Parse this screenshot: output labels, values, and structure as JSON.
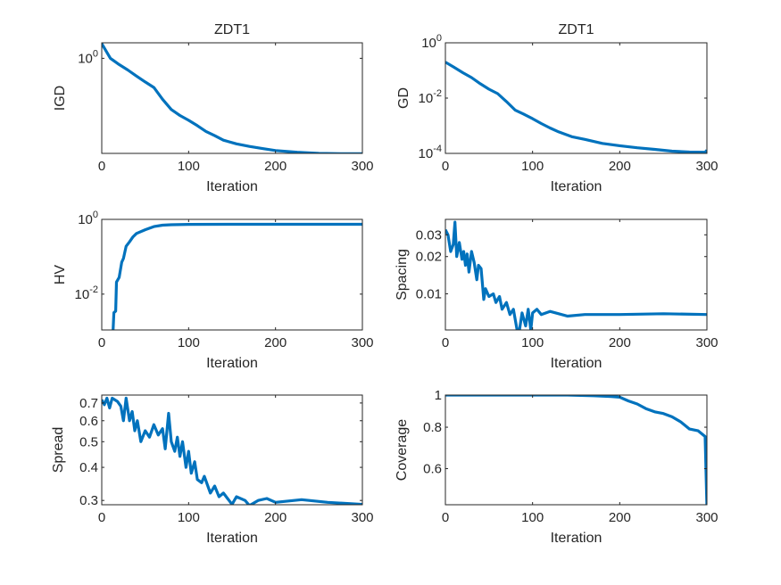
{
  "line_color": "#0072BD",
  "chart_data": [
    {
      "type": "line",
      "title": "ZDT1",
      "xlabel": "Iteration",
      "ylabel": "IGD",
      "yscale": "log",
      "xlim": [
        0,
        300
      ],
      "ylim": [
        0.2,
        1.3
      ],
      "xticks": [
        {
          "value": 0,
          "label": "0"
        },
        {
          "value": 100,
          "label": "100"
        },
        {
          "value": 200,
          "label": "200"
        },
        {
          "value": 300,
          "label": "300"
        }
      ],
      "yticks": [
        {
          "value": 1,
          "label": "10",
          "exp": "0"
        }
      ],
      "points": [
        [
          0,
          1.28
        ],
        [
          10,
          1.0
        ],
        [
          20,
          0.9
        ],
        [
          30,
          0.82
        ],
        [
          40,
          0.74
        ],
        [
          50,
          0.67
        ],
        [
          60,
          0.61
        ],
        [
          70,
          0.5
        ],
        [
          80,
          0.42
        ],
        [
          90,
          0.38
        ],
        [
          100,
          0.35
        ],
        [
          110,
          0.32
        ],
        [
          120,
          0.29
        ],
        [
          130,
          0.27
        ],
        [
          140,
          0.25
        ],
        [
          155,
          0.235
        ],
        [
          170,
          0.225
        ],
        [
          185,
          0.217
        ],
        [
          200,
          0.21
        ],
        [
          225,
          0.204
        ],
        [
          250,
          0.2
        ],
        [
          275,
          0.199
        ],
        [
          300,
          0.199
        ]
      ]
    },
    {
      "type": "line",
      "title": "ZDT1",
      "xlabel": "Iteration",
      "ylabel": "GD",
      "yscale": "log",
      "xlim": [
        0,
        300
      ],
      "ylim": [
        0.0001,
        1
      ],
      "xticks": [
        {
          "value": 0,
          "label": "0"
        },
        {
          "value": 100,
          "label": "100"
        },
        {
          "value": 200,
          "label": "200"
        },
        {
          "value": 300,
          "label": "300"
        }
      ],
      "yticks": [
        {
          "value": 1,
          "label": "10",
          "exp": "0"
        },
        {
          "value": 0.01,
          "label": "10",
          "exp": "-2"
        },
        {
          "value": 0.0001,
          "label": "10",
          "exp": "-4"
        }
      ],
      "points": [
        [
          0,
          0.2
        ],
        [
          10,
          0.13
        ],
        [
          20,
          0.083
        ],
        [
          30,
          0.055
        ],
        [
          40,
          0.033
        ],
        [
          50,
          0.021
        ],
        [
          60,
          0.0145
        ],
        [
          70,
          0.0075
        ],
        [
          80,
          0.0037
        ],
        [
          90,
          0.0026
        ],
        [
          100,
          0.0018
        ],
        [
          110,
          0.0012
        ],
        [
          120,
          0.00083
        ],
        [
          130,
          0.0006
        ],
        [
          145,
          0.0004
        ],
        [
          160,
          0.00032
        ],
        [
          180,
          0.00023
        ],
        [
          200,
          0.00019
        ],
        [
          220,
          0.00016
        ],
        [
          240,
          0.00014
        ],
        [
          260,
          0.00012
        ],
        [
          280,
          0.000112
        ],
        [
          298,
          0.00011
        ],
        [
          300,
          0.00013
        ]
      ]
    },
    {
      "type": "line",
      "title": "",
      "xlabel": "Iteration",
      "ylabel": "HV",
      "yscale": "log",
      "xlim": [
        0,
        300
      ],
      "ylim": [
        0.0011,
        1
      ],
      "xticks": [
        {
          "value": 0,
          "label": "0"
        },
        {
          "value": 100,
          "label": "100"
        },
        {
          "value": 200,
          "label": "200"
        },
        {
          "value": 300,
          "label": "300"
        }
      ],
      "yticks": [
        {
          "value": 1,
          "label": "10",
          "exp": "0"
        },
        {
          "value": 0.01,
          "label": "10",
          "exp": "-2"
        }
      ],
      "points": [
        [
          13,
          0.0011
        ],
        [
          14,
          0.0032
        ],
        [
          16,
          0.0035
        ],
        [
          17,
          0.021
        ],
        [
          20,
          0.028
        ],
        [
          23,
          0.072
        ],
        [
          25,
          0.09
        ],
        [
          28,
          0.19
        ],
        [
          32,
          0.25
        ],
        [
          36,
          0.34
        ],
        [
          40,
          0.42
        ],
        [
          50,
          0.53
        ],
        [
          60,
          0.64
        ],
        [
          70,
          0.7
        ],
        [
          80,
          0.72
        ],
        [
          100,
          0.735
        ],
        [
          150,
          0.74
        ],
        [
          200,
          0.74
        ],
        [
          300,
          0.74
        ]
      ]
    },
    {
      "type": "line",
      "title": "",
      "xlabel": "Iteration",
      "ylabel": "Spacing",
      "yscale": "log",
      "xlim": [
        0,
        300
      ],
      "ylim": [
        0.0051,
        0.04
      ],
      "xticks": [
        {
          "value": 0,
          "label": "0"
        },
        {
          "value": 100,
          "label": "100"
        },
        {
          "value": 200,
          "label": "200"
        },
        {
          "value": 300,
          "label": "300"
        }
      ],
      "yticks": [
        {
          "value": 0.03,
          "label": "0.03"
        },
        {
          "value": 0.02,
          "label": "0.02"
        },
        {
          "value": 0.01,
          "label": "0.01"
        }
      ],
      "points": [
        [
          0,
          0.033
        ],
        [
          3,
          0.03
        ],
        [
          6,
          0.022
        ],
        [
          9,
          0.025
        ],
        [
          11,
          0.038
        ],
        [
          13,
          0.02
        ],
        [
          16,
          0.026
        ],
        [
          19,
          0.019
        ],
        [
          21,
          0.022
        ],
        [
          23,
          0.017
        ],
        [
          25,
          0.021
        ],
        [
          27,
          0.015
        ],
        [
          30,
          0.022
        ],
        [
          33,
          0.018
        ],
        [
          36,
          0.013
        ],
        [
          38,
          0.017
        ],
        [
          41,
          0.016
        ],
        [
          44,
          0.009
        ],
        [
          46,
          0.011
        ],
        [
          50,
          0.0095
        ],
        [
          55,
          0.01
        ],
        [
          58,
          0.0085
        ],
        [
          62,
          0.0095
        ],
        [
          65,
          0.0075
        ],
        [
          70,
          0.0085
        ],
        [
          74,
          0.0068
        ],
        [
          78,
          0.0075
        ],
        [
          82,
          0.0052
        ],
        [
          85,
          0.0051
        ],
        [
          88,
          0.007
        ],
        [
          92,
          0.0055
        ],
        [
          95,
          0.0075
        ],
        [
          98,
          0.0051
        ],
        [
          100,
          0.007
        ],
        [
          105,
          0.0075
        ],
        [
          110,
          0.0068
        ],
        [
          120,
          0.0072
        ],
        [
          140,
          0.0066
        ],
        [
          160,
          0.0068
        ],
        [
          200,
          0.0068
        ],
        [
          250,
          0.0069
        ],
        [
          300,
          0.0068
        ]
      ]
    },
    {
      "type": "line",
      "title": "",
      "xlabel": "Iteration",
      "ylabel": "Spread",
      "yscale": "log",
      "xlim": [
        0,
        300
      ],
      "ylim": [
        0.289,
        0.75
      ],
      "xticks": [
        {
          "value": 0,
          "label": "0"
        },
        {
          "value": 100,
          "label": "100"
        },
        {
          "value": 200,
          "label": "200"
        },
        {
          "value": 300,
          "label": "300"
        }
      ],
      "yticks": [
        {
          "value": 0.7,
          "label": "0.7"
        },
        {
          "value": 0.6,
          "label": "0.6"
        },
        {
          "value": 0.5,
          "label": "0.5"
        },
        {
          "value": 0.4,
          "label": "0.4"
        },
        {
          "value": 0.3,
          "label": "0.3"
        }
      ],
      "points": [
        [
          0,
          0.72
        ],
        [
          3,
          0.69
        ],
        [
          6,
          0.73
        ],
        [
          9,
          0.67
        ],
        [
          12,
          0.73
        ],
        [
          18,
          0.71
        ],
        [
          22,
          0.68
        ],
        [
          25,
          0.6
        ],
        [
          28,
          0.73
        ],
        [
          32,
          0.6
        ],
        [
          35,
          0.65
        ],
        [
          38,
          0.55
        ],
        [
          41,
          0.6
        ],
        [
          45,
          0.5
        ],
        [
          50,
          0.55
        ],
        [
          55,
          0.52
        ],
        [
          60,
          0.58
        ],
        [
          65,
          0.53
        ],
        [
          70,
          0.56
        ],
        [
          73,
          0.47
        ],
        [
          77,
          0.64
        ],
        [
          80,
          0.5
        ],
        [
          84,
          0.46
        ],
        [
          87,
          0.52
        ],
        [
          90,
          0.44
        ],
        [
          93,
          0.5
        ],
        [
          97,
          0.4
        ],
        [
          100,
          0.46
        ],
        [
          103,
          0.38
        ],
        [
          107,
          0.42
        ],
        [
          110,
          0.36
        ],
        [
          115,
          0.35
        ],
        [
          118,
          0.37
        ],
        [
          125,
          0.32
        ],
        [
          130,
          0.34
        ],
        [
          135,
          0.31
        ],
        [
          140,
          0.32
        ],
        [
          150,
          0.29
        ],
        [
          155,
          0.31
        ],
        [
          165,
          0.3
        ],
        [
          170,
          0.287
        ],
        [
          180,
          0.3
        ],
        [
          190,
          0.305
        ],
        [
          200,
          0.295
        ],
        [
          230,
          0.302
        ],
        [
          260,
          0.295
        ],
        [
          300,
          0.29
        ]
      ]
    },
    {
      "type": "line",
      "title": "",
      "xlabel": "Iteration",
      "ylabel": "Coverage",
      "yscale": "log",
      "xlim": [
        0,
        300
      ],
      "ylim": [
        0.467,
        1
      ],
      "xticks": [
        {
          "value": 0,
          "label": "0"
        },
        {
          "value": 100,
          "label": "100"
        },
        {
          "value": 200,
          "label": "200"
        },
        {
          "value": 300,
          "label": "300"
        }
      ],
      "yticks": [
        {
          "value": 1,
          "label": "1"
        },
        {
          "value": 0.8,
          "label": "0.8"
        },
        {
          "value": 0.6,
          "label": "0.6"
        }
      ],
      "points": [
        [
          0,
          1.0
        ],
        [
          140,
          1.0
        ],
        [
          170,
          0.995
        ],
        [
          190,
          0.99
        ],
        [
          200,
          0.985
        ],
        [
          210,
          0.96
        ],
        [
          220,
          0.94
        ],
        [
          230,
          0.91
        ],
        [
          240,
          0.89
        ],
        [
          250,
          0.88
        ],
        [
          260,
          0.86
        ],
        [
          270,
          0.83
        ],
        [
          280,
          0.79
        ],
        [
          290,
          0.78
        ],
        [
          298,
          0.75
        ],
        [
          300,
          0.46
        ]
      ]
    }
  ]
}
